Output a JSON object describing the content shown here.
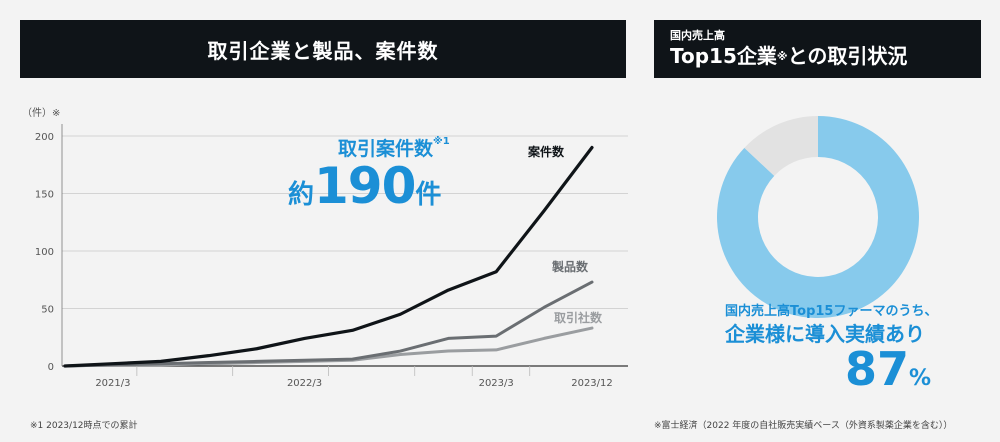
{
  "left_banner": {
    "title": "取引企業と製品、案件数"
  },
  "right_banner": {
    "subtitle": "国内売上高",
    "title_main": "Top15企業",
    "title_mark": "※",
    "title_tail": "との取引状況"
  },
  "callout": {
    "label": "取引案件数",
    "label_note": "※1",
    "prefix": "約",
    "value": "190",
    "suffix": "件"
  },
  "colors": {
    "cases": "#0f1418",
    "products": "#6a6e72",
    "companies": "#9a9da0",
    "accent": "#1b8fd6",
    "donut_fill": "#87caec",
    "donut_rest": "#e2e2e2"
  },
  "chart_data": {
    "type": "line",
    "y_unit_label": "（件）",
    "y_unit_mark": "※",
    "ylim": [
      0,
      200
    ],
    "y_ticks": [
      0,
      50,
      100,
      150,
      200
    ],
    "x": [
      0,
      1,
      2,
      3,
      4,
      5,
      6,
      7,
      8,
      9,
      10,
      11
    ],
    "x_tick_labels": [
      {
        "label": "2021/3",
        "at": 1
      },
      {
        "label": "2022/3",
        "at": 5
      },
      {
        "label": "2023/3",
        "at": 9
      },
      {
        "label": "2023/12",
        "at": 11
      }
    ],
    "series": [
      {
        "name": "案件数",
        "color_key": "cases",
        "values": [
          0,
          2,
          4,
          9,
          15,
          24,
          31,
          45,
          66,
          82,
          135,
          190
        ]
      },
      {
        "name": "製品数",
        "color_key": "products",
        "values": [
          0,
          1,
          2,
          3,
          4,
          5,
          6,
          13,
          24,
          26,
          51,
          73
        ]
      },
      {
        "name": "取引社数",
        "color_key": "companies",
        "values": [
          0,
          1,
          1,
          2,
          3,
          4,
          5,
          10,
          13,
          14,
          24,
          33
        ]
      }
    ],
    "grid": true
  },
  "donut": {
    "percent": 87,
    "caption_line1": "国内売上高Top15ファーマのうち、",
    "caption_line2": "企業様に導入実績あり",
    "value": "87",
    "unit": "%"
  },
  "notes": {
    "left": "※1 2023/12時点での累計",
    "right": "※富士経済（2022 年度の自社販売実績ベース（外資系製薬企業を含む））"
  }
}
